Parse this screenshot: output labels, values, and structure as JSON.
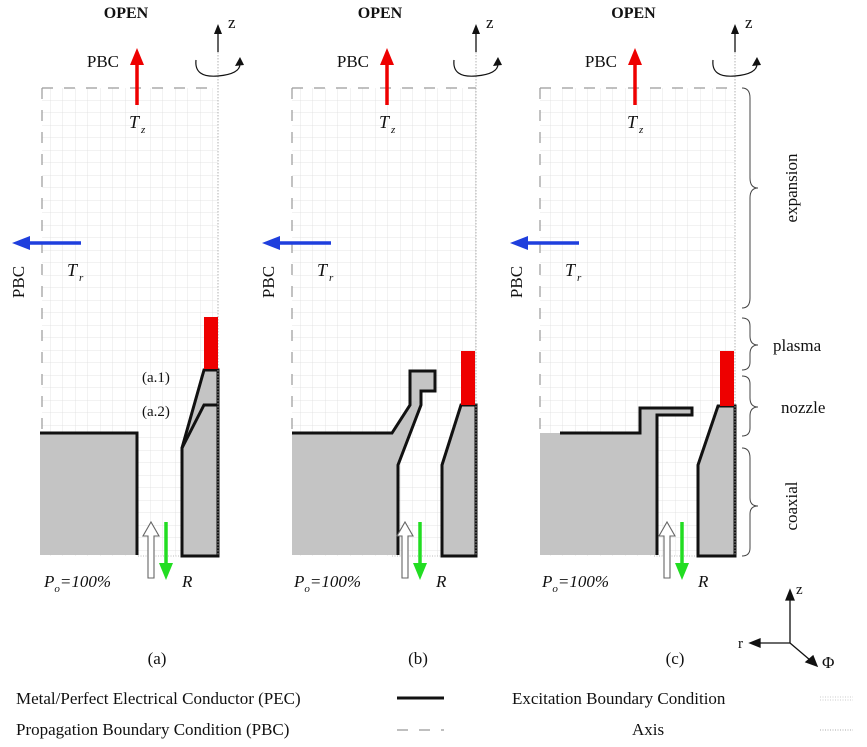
{
  "panels": [
    {
      "id": "a",
      "open_label": "OPEN",
      "pbc_top_label": "PBC",
      "pbc_side_label": "PBC",
      "tz_label": "T",
      "tz_sub": "z",
      "tr_label": "T",
      "tr_sub": "r",
      "z_label": "z",
      "po_label": "P",
      "po_sub": "o",
      "po_value": "=100%",
      "r_label": "R",
      "caption": "(a)",
      "annotations": [
        "(a.1)",
        "(a.2)"
      ]
    },
    {
      "id": "b",
      "open_label": "OPEN",
      "pbc_top_label": "PBC",
      "pbc_side_label": "PBC",
      "tz_label": "T",
      "tz_sub": "z",
      "tr_label": "T",
      "tr_sub": "r",
      "z_label": "z",
      "po_label": "P",
      "po_sub": "o",
      "po_value": "=100%",
      "r_label": "R",
      "caption": "(b)",
      "annotations": []
    },
    {
      "id": "c",
      "open_label": "OPEN",
      "pbc_top_label": "PBC",
      "pbc_side_label": "PBC",
      "tz_label": "T",
      "tz_sub": "z",
      "tr_label": "T",
      "tr_sub": "r",
      "z_label": "z",
      "po_label": "P",
      "po_sub": "o",
      "po_value": "=100%",
      "r_label": "R",
      "caption": "(c)",
      "annotations": []
    }
  ],
  "regions": [
    "expansion",
    "plasma",
    "nozzle",
    "coaxial"
  ],
  "axes_legend": {
    "z": "z",
    "r": "r",
    "phi": "Φ"
  },
  "legend": {
    "pec": "Metal/Perfect Electrical Conductor (PEC)",
    "pbc": "Propagation Boundary Condition (PBC)",
    "excitation": "Excitation Boundary Condition",
    "axis": "Axis"
  },
  "colors": {
    "red": "#ee0000",
    "blue": "#1f3fdd",
    "green": "#22dd22",
    "metal_fill": "#c4c4c4",
    "grid": "#d9d9d9"
  }
}
